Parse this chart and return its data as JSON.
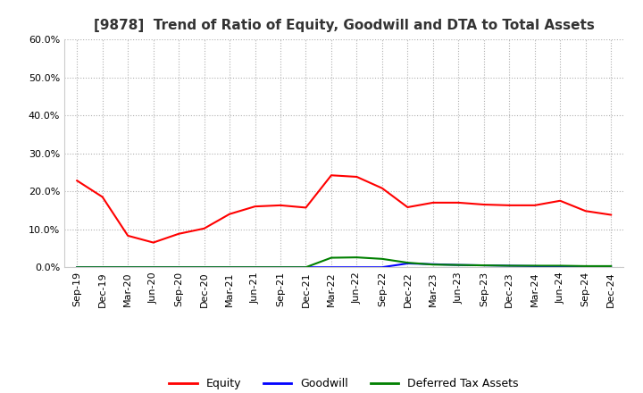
{
  "title": "[9878]  Trend of Ratio of Equity, Goodwill and DTA to Total Assets",
  "x_labels": [
    "Sep-19",
    "Dec-19",
    "Mar-20",
    "Jun-20",
    "Sep-20",
    "Dec-20",
    "Mar-21",
    "Jun-21",
    "Sep-21",
    "Dec-21",
    "Mar-22",
    "Jun-22",
    "Sep-22",
    "Dec-22",
    "Mar-23",
    "Jun-23",
    "Sep-23",
    "Dec-23",
    "Mar-24",
    "Jun-24",
    "Sep-24",
    "Dec-24"
  ],
  "equity": [
    0.228,
    0.185,
    0.083,
    0.065,
    0.088,
    0.102,
    0.14,
    0.16,
    0.163,
    0.157,
    0.242,
    0.238,
    0.208,
    0.158,
    0.17,
    0.17,
    0.165,
    0.163,
    0.163,
    0.175,
    0.148,
    0.138
  ],
  "goodwill": [
    0.0,
    0.0,
    0.0,
    0.0,
    0.0,
    0.0,
    0.0,
    0.0,
    0.0,
    0.0,
    0.0,
    0.0,
    0.0,
    0.01,
    0.008,
    0.006,
    0.005,
    0.004,
    0.003,
    0.002,
    0.002,
    0.002
  ],
  "dta": [
    0.0,
    0.0,
    0.0,
    0.0,
    0.0,
    0.0,
    0.0,
    0.0,
    0.0,
    0.0,
    0.025,
    0.026,
    0.022,
    0.012,
    0.007,
    0.006,
    0.005,
    0.004,
    0.004,
    0.004,
    0.003,
    0.003
  ],
  "equity_color": "#ff0000",
  "goodwill_color": "#0000ff",
  "dta_color": "#008000",
  "background_color": "#ffffff",
  "grid_color": "#b0b0b0",
  "ylim": [
    0.0,
    0.6
  ],
  "yticks": [
    0.0,
    0.1,
    0.2,
    0.3,
    0.4,
    0.5,
    0.6
  ],
  "legend_labels": [
    "Equity",
    "Goodwill",
    "Deferred Tax Assets"
  ],
  "title_fontsize": 11,
  "tick_fontsize": 8,
  "legend_fontsize": 9
}
